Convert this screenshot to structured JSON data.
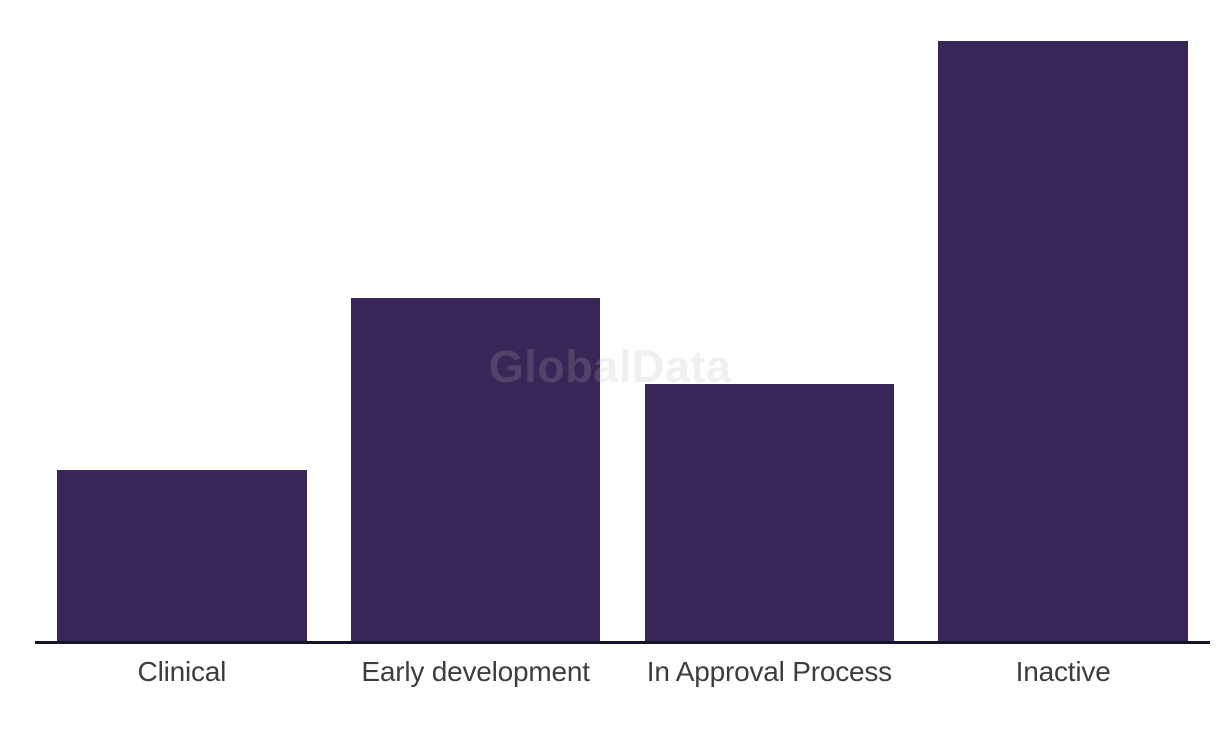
{
  "watermark": {
    "text": "GlobalData"
  },
  "chart_data": {
    "type": "bar",
    "title": "",
    "xlabel": "",
    "ylabel": "",
    "categories": [
      "Clinical",
      "Early development",
      "In Approval Process",
      "Inactive"
    ],
    "values": [
      2,
      4,
      3,
      7
    ],
    "ylim": [
      0,
      7
    ],
    "y_axis_visible": false,
    "grid": false,
    "legend": "none",
    "bar_color": "#372657",
    "axis_line_color": "#15152b",
    "label_color": "#3d3d3d",
    "watermark_color": "#b6b6b6"
  }
}
